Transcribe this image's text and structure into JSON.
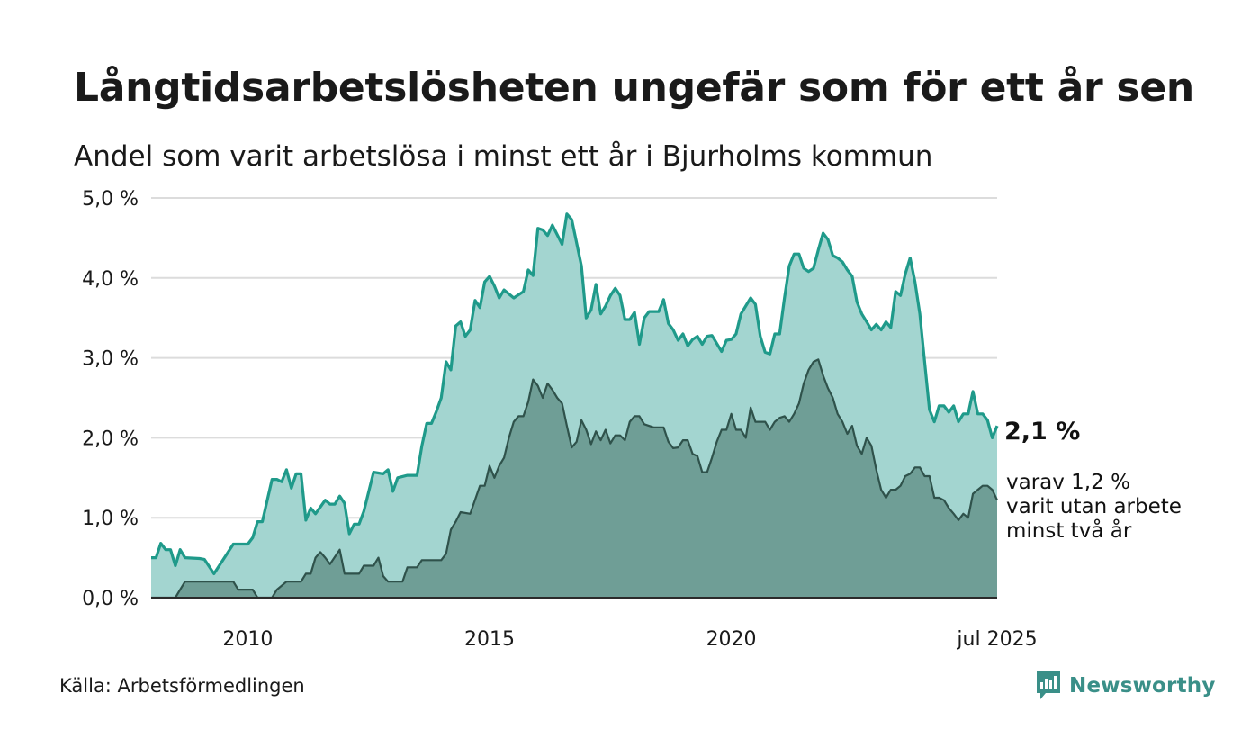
{
  "header": {
    "title": "Långtidsarbetslösheten ungefär som för ett år sen",
    "subtitle": "Andel som varit arbetslösa i minst ett år i Bjurholms kommun"
  },
  "footer": {
    "source": "Källa: Arbetsförmedlingen",
    "brand": "Newsworthy"
  },
  "colors": {
    "series1_line": "#1f9a8a",
    "series1_fill": "#a3d5d0",
    "series2_line": "#2f524b",
    "series2_fill": "#6f9e96",
    "grid": "#dcdcdc",
    "brand": "#3a8f88"
  },
  "chart_data": {
    "type": "area",
    "x_unit": "year",
    "xlim": [
      2008,
      2025.5
    ],
    "ylim": [
      0,
      5
    ],
    "y_ticks": [
      0,
      1,
      2,
      3,
      4,
      5
    ],
    "y_tick_labels": [
      "0,0 %",
      "1,0 %",
      "2,0 %",
      "3,0 %",
      "4,0 %",
      "5,0 %"
    ],
    "x_ticks": [
      2010,
      2015,
      2020,
      2025.5
    ],
    "x_tick_labels": [
      "2010",
      "2015",
      "2020",
      "jul 2025"
    ],
    "grid": true,
    "legend": "none",
    "annotations": {
      "main_value": "2,1 %",
      "sub_line1": "varav 1,2 %",
      "sub_line2": "varit utan arbete",
      "sub_line3": "minst två år"
    },
    "series": [
      {
        "points": [
          [
            2008.0,
            0.5
          ],
          [
            2008.1,
            0.5
          ],
          [
            2008.2,
            0.68
          ],
          [
            2008.3,
            0.6
          ],
          [
            2008.4,
            0.6
          ],
          [
            2008.5,
            0.4
          ],
          [
            2008.6,
            0.6
          ],
          [
            2008.7,
            0.5
          ],
          [
            2009.0,
            0.49
          ],
          [
            2009.1,
            0.48
          ],
          [
            2009.3,
            0.3
          ],
          [
            2009.7,
            0.67
          ],
          [
            2010.0,
            0.67
          ],
          [
            2010.1,
            0.75
          ],
          [
            2010.2,
            0.95
          ],
          [
            2010.3,
            0.95
          ],
          [
            2010.5,
            1.48
          ],
          [
            2010.6,
            1.48
          ],
          [
            2010.7,
            1.45
          ],
          [
            2010.8,
            1.6
          ],
          [
            2010.9,
            1.37
          ],
          [
            2011.0,
            1.55
          ],
          [
            2011.1,
            1.55
          ],
          [
            2011.2,
            0.97
          ],
          [
            2011.3,
            1.12
          ],
          [
            2011.4,
            1.05
          ],
          [
            2011.6,
            1.22
          ],
          [
            2011.7,
            1.17
          ],
          [
            2011.8,
            1.17
          ],
          [
            2011.9,
            1.27
          ],
          [
            2012.0,
            1.18
          ],
          [
            2012.1,
            0.8
          ],
          [
            2012.2,
            0.92
          ],
          [
            2012.3,
            0.92
          ],
          [
            2012.4,
            1.08
          ],
          [
            2012.6,
            1.57
          ],
          [
            2012.7,
            1.56
          ],
          [
            2012.8,
            1.55
          ],
          [
            2012.9,
            1.6
          ],
          [
            2013.0,
            1.33
          ],
          [
            2013.1,
            1.5
          ],
          [
            2013.3,
            1.53
          ],
          [
            2013.5,
            1.53
          ],
          [
            2013.6,
            1.9
          ],
          [
            2013.7,
            2.18
          ],
          [
            2013.8,
            2.18
          ],
          [
            2013.9,
            2.33
          ],
          [
            2014.0,
            2.5
          ],
          [
            2014.1,
            2.95
          ],
          [
            2014.2,
            2.85
          ],
          [
            2014.3,
            3.4
          ],
          [
            2014.4,
            3.45
          ],
          [
            2014.5,
            3.27
          ],
          [
            2014.6,
            3.35
          ],
          [
            2014.7,
            3.72
          ],
          [
            2014.8,
            3.63
          ],
          [
            2014.9,
            3.95
          ],
          [
            2015.0,
            4.02
          ],
          [
            2015.1,
            3.9
          ],
          [
            2015.2,
            3.75
          ],
          [
            2015.3,
            3.85
          ],
          [
            2015.5,
            3.75
          ],
          [
            2015.7,
            3.83
          ],
          [
            2015.8,
            4.1
          ],
          [
            2015.9,
            4.03
          ],
          [
            2016.0,
            4.62
          ],
          [
            2016.1,
            4.6
          ],
          [
            2016.2,
            4.53
          ],
          [
            2016.3,
            4.66
          ],
          [
            2016.5,
            4.42
          ],
          [
            2016.6,
            4.8
          ],
          [
            2016.7,
            4.73
          ],
          [
            2016.9,
            4.15
          ],
          [
            2017.0,
            3.5
          ],
          [
            2017.1,
            3.6
          ],
          [
            2017.2,
            3.92
          ],
          [
            2017.3,
            3.55
          ],
          [
            2017.4,
            3.65
          ],
          [
            2017.5,
            3.78
          ],
          [
            2017.6,
            3.87
          ],
          [
            2017.7,
            3.78
          ],
          [
            2017.8,
            3.48
          ],
          [
            2017.9,
            3.48
          ],
          [
            2018.0,
            3.57
          ],
          [
            2018.1,
            3.17
          ],
          [
            2018.2,
            3.5
          ],
          [
            2018.3,
            3.58
          ],
          [
            2018.5,
            3.58
          ],
          [
            2018.6,
            3.73
          ],
          [
            2018.7,
            3.43
          ],
          [
            2018.8,
            3.35
          ],
          [
            2018.9,
            3.22
          ],
          [
            2019.0,
            3.3
          ],
          [
            2019.1,
            3.15
          ],
          [
            2019.2,
            3.23
          ],
          [
            2019.3,
            3.27
          ],
          [
            2019.4,
            3.17
          ],
          [
            2019.5,
            3.27
          ],
          [
            2019.6,
            3.28
          ],
          [
            2019.8,
            3.08
          ],
          [
            2019.9,
            3.22
          ],
          [
            2020.0,
            3.23
          ],
          [
            2020.1,
            3.3
          ],
          [
            2020.2,
            3.55
          ],
          [
            2020.4,
            3.75
          ],
          [
            2020.5,
            3.67
          ],
          [
            2020.6,
            3.27
          ],
          [
            2020.7,
            3.07
          ],
          [
            2020.8,
            3.05
          ],
          [
            2020.9,
            3.3
          ],
          [
            2021.0,
            3.3
          ],
          [
            2021.1,
            3.75
          ],
          [
            2021.2,
            4.15
          ],
          [
            2021.3,
            4.3
          ],
          [
            2021.4,
            4.3
          ],
          [
            2021.5,
            4.12
          ],
          [
            2021.6,
            4.08
          ],
          [
            2021.7,
            4.12
          ],
          [
            2021.8,
            4.35
          ],
          [
            2021.9,
            4.56
          ],
          [
            2022.0,
            4.48
          ],
          [
            2022.1,
            4.28
          ],
          [
            2022.2,
            4.25
          ],
          [
            2022.3,
            4.2
          ],
          [
            2022.4,
            4.1
          ],
          [
            2022.5,
            4.02
          ],
          [
            2022.6,
            3.7
          ],
          [
            2022.7,
            3.55
          ],
          [
            2022.8,
            3.45
          ],
          [
            2022.9,
            3.35
          ],
          [
            2023.0,
            3.42
          ],
          [
            2023.1,
            3.35
          ],
          [
            2023.2,
            3.45
          ],
          [
            2023.3,
            3.38
          ],
          [
            2023.4,
            3.83
          ],
          [
            2023.5,
            3.78
          ],
          [
            2023.6,
            4.05
          ],
          [
            2023.7,
            4.25
          ],
          [
            2023.8,
            3.95
          ],
          [
            2023.9,
            3.55
          ],
          [
            2024.0,
            2.95
          ],
          [
            2024.1,
            2.35
          ],
          [
            2024.2,
            2.2
          ],
          [
            2024.3,
            2.4
          ],
          [
            2024.4,
            2.4
          ],
          [
            2024.5,
            2.32
          ],
          [
            2024.6,
            2.4
          ],
          [
            2024.7,
            2.2
          ],
          [
            2024.8,
            2.3
          ],
          [
            2024.9,
            2.3
          ],
          [
            2025.0,
            2.58
          ],
          [
            2025.1,
            2.3
          ],
          [
            2025.2,
            2.3
          ],
          [
            2025.3,
            2.22
          ],
          [
            2025.4,
            2.0
          ],
          [
            2025.5,
            2.15
          ]
        ]
      },
      {
        "points": [
          [
            2008.0,
            0.0
          ],
          [
            2008.5,
            0.0
          ],
          [
            2008.6,
            0.1
          ],
          [
            2008.7,
            0.2
          ],
          [
            2009.5,
            0.2
          ],
          [
            2009.7,
            0.2
          ],
          [
            2009.8,
            0.1
          ],
          [
            2010.1,
            0.1
          ],
          [
            2010.2,
            0.0
          ],
          [
            2010.5,
            0.0
          ],
          [
            2010.6,
            0.1
          ],
          [
            2010.8,
            0.2
          ],
          [
            2011.1,
            0.2
          ],
          [
            2011.2,
            0.3
          ],
          [
            2011.3,
            0.3
          ],
          [
            2011.4,
            0.5
          ],
          [
            2011.5,
            0.57
          ],
          [
            2011.6,
            0.5
          ],
          [
            2011.7,
            0.42
          ],
          [
            2011.9,
            0.6
          ],
          [
            2012.0,
            0.3
          ],
          [
            2012.3,
            0.3
          ],
          [
            2012.4,
            0.4
          ],
          [
            2012.6,
            0.4
          ],
          [
            2012.7,
            0.5
          ],
          [
            2012.8,
            0.27
          ],
          [
            2012.9,
            0.2
          ],
          [
            2013.2,
            0.2
          ],
          [
            2013.3,
            0.38
          ],
          [
            2013.5,
            0.38
          ],
          [
            2013.6,
            0.47
          ],
          [
            2013.8,
            0.47
          ],
          [
            2014.0,
            0.47
          ],
          [
            2014.1,
            0.55
          ],
          [
            2014.2,
            0.85
          ],
          [
            2014.3,
            0.95
          ],
          [
            2014.4,
            1.07
          ],
          [
            2014.6,
            1.05
          ],
          [
            2014.8,
            1.4
          ],
          [
            2014.9,
            1.4
          ],
          [
            2015.0,
            1.65
          ],
          [
            2015.1,
            1.5
          ],
          [
            2015.2,
            1.65
          ],
          [
            2015.3,
            1.75
          ],
          [
            2015.4,
            2.0
          ],
          [
            2015.5,
            2.2
          ],
          [
            2015.6,
            2.27
          ],
          [
            2015.7,
            2.27
          ],
          [
            2015.8,
            2.45
          ],
          [
            2015.9,
            2.73
          ],
          [
            2016.0,
            2.65
          ],
          [
            2016.1,
            2.5
          ],
          [
            2016.2,
            2.68
          ],
          [
            2016.3,
            2.6
          ],
          [
            2016.4,
            2.5
          ],
          [
            2016.5,
            2.43
          ],
          [
            2016.6,
            2.15
          ],
          [
            2016.7,
            1.88
          ],
          [
            2016.8,
            1.95
          ],
          [
            2016.9,
            2.22
          ],
          [
            2017.0,
            2.1
          ],
          [
            2017.1,
            1.92
          ],
          [
            2017.2,
            2.08
          ],
          [
            2017.3,
            1.97
          ],
          [
            2017.4,
            2.1
          ],
          [
            2017.5,
            1.93
          ],
          [
            2017.6,
            2.03
          ],
          [
            2017.7,
            2.03
          ],
          [
            2017.8,
            1.97
          ],
          [
            2017.9,
            2.2
          ],
          [
            2018.0,
            2.27
          ],
          [
            2018.1,
            2.27
          ],
          [
            2018.2,
            2.17
          ],
          [
            2018.4,
            2.13
          ],
          [
            2018.6,
            2.13
          ],
          [
            2018.7,
            1.95
          ],
          [
            2018.8,
            1.87
          ],
          [
            2018.9,
            1.88
          ],
          [
            2019.0,
            1.97
          ],
          [
            2019.1,
            1.97
          ],
          [
            2019.2,
            1.8
          ],
          [
            2019.3,
            1.77
          ],
          [
            2019.4,
            1.57
          ],
          [
            2019.5,
            1.57
          ],
          [
            2019.6,
            1.75
          ],
          [
            2019.7,
            1.95
          ],
          [
            2019.8,
            2.1
          ],
          [
            2019.9,
            2.1
          ],
          [
            2020.0,
            2.3
          ],
          [
            2020.1,
            2.1
          ],
          [
            2020.2,
            2.1
          ],
          [
            2020.3,
            2.0
          ],
          [
            2020.4,
            2.38
          ],
          [
            2020.5,
            2.2
          ],
          [
            2020.7,
            2.2
          ],
          [
            2020.8,
            2.1
          ],
          [
            2020.9,
            2.2
          ],
          [
            2021.0,
            2.25
          ],
          [
            2021.1,
            2.27
          ],
          [
            2021.2,
            2.2
          ],
          [
            2021.3,
            2.3
          ],
          [
            2021.4,
            2.43
          ],
          [
            2021.5,
            2.68
          ],
          [
            2021.6,
            2.85
          ],
          [
            2021.7,
            2.95
          ],
          [
            2021.8,
            2.98
          ],
          [
            2021.9,
            2.78
          ],
          [
            2022.0,
            2.62
          ],
          [
            2022.1,
            2.5
          ],
          [
            2022.2,
            2.3
          ],
          [
            2022.3,
            2.2
          ],
          [
            2022.4,
            2.05
          ],
          [
            2022.5,
            2.15
          ],
          [
            2022.6,
            1.9
          ],
          [
            2022.7,
            1.8
          ],
          [
            2022.8,
            2.0
          ],
          [
            2022.9,
            1.9
          ],
          [
            2023.0,
            1.6
          ],
          [
            2023.1,
            1.35
          ],
          [
            2023.2,
            1.25
          ],
          [
            2023.3,
            1.35
          ],
          [
            2023.4,
            1.35
          ],
          [
            2023.5,
            1.4
          ],
          [
            2023.6,
            1.52
          ],
          [
            2023.7,
            1.55
          ],
          [
            2023.8,
            1.63
          ],
          [
            2023.9,
            1.63
          ],
          [
            2024.0,
            1.52
          ],
          [
            2024.1,
            1.52
          ],
          [
            2024.2,
            1.25
          ],
          [
            2024.3,
            1.25
          ],
          [
            2024.4,
            1.22
          ],
          [
            2024.5,
            1.12
          ],
          [
            2024.6,
            1.05
          ],
          [
            2024.7,
            0.97
          ],
          [
            2024.8,
            1.05
          ],
          [
            2024.9,
            1.0
          ],
          [
            2025.0,
            1.3
          ],
          [
            2025.1,
            1.35
          ],
          [
            2025.2,
            1.4
          ],
          [
            2025.3,
            1.4
          ],
          [
            2025.4,
            1.35
          ],
          [
            2025.5,
            1.22
          ]
        ]
      }
    ]
  }
}
